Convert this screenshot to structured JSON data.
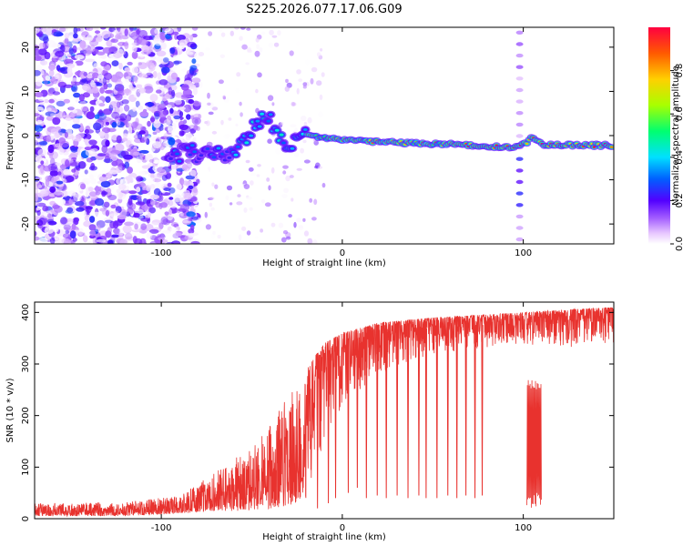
{
  "figure": {
    "title": "S225.2026.077.17.06.G09"
  },
  "chart_data": [
    {
      "type": "heatmap",
      "name": "spectrogram",
      "xlabel": "Height of straight line (km)",
      "ylabel": "Frequency (Hz)",
      "xlim": [
        -170,
        150
      ],
      "ylim": [
        -24.5,
        24.5
      ],
      "xticks": [
        -100,
        0,
        100
      ],
      "yticks": [
        -20,
        -10,
        0,
        10,
        20
      ],
      "colorbar": {
        "label": "Normalized spectral amplitude",
        "range": [
          0,
          1
        ],
        "ticks": [
          0.0,
          0.2,
          0.4,
          0.6,
          0.8
        ]
      },
      "ridge": [
        {
          "x": -70,
          "y": -4
        },
        {
          "x": -62,
          "y": -4.5
        },
        {
          "x": -55,
          "y": -2.5
        },
        {
          "x": -48,
          "y": 2
        },
        {
          "x": -42,
          "y": 5
        },
        {
          "x": -36,
          "y": 0
        },
        {
          "x": -30,
          "y": -2.5
        },
        {
          "x": -25,
          "y": 0
        },
        {
          "x": -20,
          "y": 0.5
        },
        {
          "x": -10,
          "y": -0.5
        },
        {
          "x": 0,
          "y": -1
        },
        {
          "x": 20,
          "y": -1.5
        },
        {
          "x": 40,
          "y": -1.7
        },
        {
          "x": 60,
          "y": -2
        },
        {
          "x": 80,
          "y": -2.5
        },
        {
          "x": 95,
          "y": -2.6
        },
        {
          "x": 102,
          "y": -1.5
        },
        {
          "x": 105,
          "y": 0
        },
        {
          "x": 110,
          "y": -2
        },
        {
          "x": 130,
          "y": -2.2
        },
        {
          "x": 150,
          "y": -2.2
        }
      ]
    },
    {
      "type": "line",
      "name": "snr",
      "xlabel": "Height of straight line (km)",
      "ylabel": "SNR (10 * v/v)",
      "xlim": [
        -170,
        150
      ],
      "ylim": [
        0,
        420
      ],
      "xticks": [
        -100,
        0,
        100
      ],
      "yticks": [
        0,
        100,
        200,
        300,
        400
      ],
      "color": "#e8322e",
      "envelope": [
        {
          "x": -170,
          "low": 5,
          "high": 30
        },
        {
          "x": -120,
          "low": 5,
          "high": 32
        },
        {
          "x": -90,
          "low": 10,
          "high": 45
        },
        {
          "x": -70,
          "low": 15,
          "high": 90
        },
        {
          "x": -55,
          "low": 15,
          "high": 130
        },
        {
          "x": -40,
          "low": 20,
          "high": 180
        },
        {
          "x": -30,
          "low": 25,
          "high": 240
        },
        {
          "x": -20,
          "low": 40,
          "high": 290
        },
        {
          "x": -10,
          "low": 150,
          "high": 340
        },
        {
          "x": 0,
          "low": 220,
          "high": 360
        },
        {
          "x": 20,
          "low": 280,
          "high": 380
        },
        {
          "x": 50,
          "low": 320,
          "high": 390
        },
        {
          "x": 100,
          "low": 340,
          "high": 400
        },
        {
          "x": 120,
          "low": 330,
          "high": 405
        },
        {
          "x": 150,
          "low": 340,
          "high": 410
        }
      ],
      "dropouts": [
        {
          "x": -14,
          "low": 20
        },
        {
          "x": -8,
          "low": 30
        },
        {
          "x": -4,
          "low": 40
        },
        {
          "x": 3,
          "low": 50
        },
        {
          "x": 8,
          "low": 60
        },
        {
          "x": 13,
          "low": 40
        },
        {
          "x": 19,
          "low": 45
        },
        {
          "x": 24,
          "low": 40
        },
        {
          "x": 30,
          "low": 45
        },
        {
          "x": 36,
          "low": 40
        },
        {
          "x": 42,
          "low": 45
        },
        {
          "x": 46,
          "low": 40
        },
        {
          "x": 52,
          "low": 40
        },
        {
          "x": 58,
          "low": 45
        },
        {
          "x": 63,
          "low": 40
        },
        {
          "x": 68,
          "low": 45
        },
        {
          "x": 73,
          "low": 40
        },
        {
          "x": 77,
          "low": 45
        }
      ],
      "band": {
        "x0": 102,
        "x1": 110,
        "low": 20,
        "high": 270
      }
    }
  ]
}
